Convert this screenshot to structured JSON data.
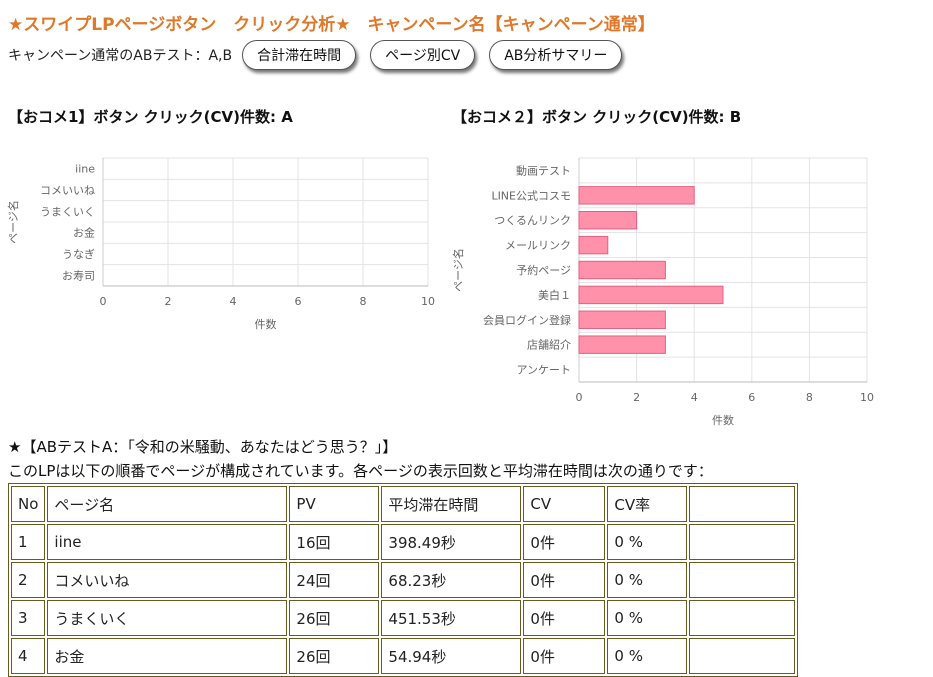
{
  "header": {
    "title": "★スワイプLPページボタン　クリック分析★　キャンペーン名【キャンペーン通常】",
    "subtitle": "キャンペーン通常のABテスト：A,B",
    "buttons": {
      "total_stay": "合計滞在時間",
      "page_cv": "ページ別CV",
      "ab_summary": "AB分析サマリー"
    }
  },
  "colors": {
    "title": "#e0782a",
    "bar_fill": "#ff91ab",
    "bar_stroke": "#e5607f",
    "table_border": "#6b5a1e"
  },
  "chart_data": [
    {
      "type": "bar",
      "orientation": "horizontal",
      "title": "【おコメ1】ボタン クリック(CV)件数: A",
      "categories": [
        "iine",
        "コメいいね",
        "うまくいく",
        "お金",
        "うなぎ",
        "お寿司"
      ],
      "values": [
        0,
        0,
        0,
        0,
        0,
        0
      ],
      "xlabel": "件数",
      "ylabel": "ページ名",
      "xlim": [
        0,
        10
      ],
      "xticks": [
        0,
        2,
        4,
        6,
        8,
        10
      ],
      "grid": true
    },
    {
      "type": "bar",
      "orientation": "horizontal",
      "title": "【おコメ２】ボタン クリック(CV)件数: B",
      "categories": [
        "動画テスト",
        "LINE公式コスモ",
        "つくるんリンク",
        "メールリンク",
        "予約ページ",
        "美白１",
        "会員ログイン登録",
        "店舗紹介",
        "アンケート"
      ],
      "values": [
        0,
        4,
        2,
        1,
        3,
        5,
        3,
        3,
        0
      ],
      "xlabel": "件数",
      "ylabel": "ページ名",
      "xlim": [
        0,
        10
      ],
      "xticks": [
        0,
        2,
        4,
        6,
        8,
        10
      ],
      "grid": true
    }
  ],
  "section": {
    "heading": "★【ABテストA：「令和の米騒動、あなたはどう思う？」】",
    "description": "このLPは以下の順番でページが構成されています。各ページの表示回数と平均滞在時間は次の通りです："
  },
  "table": {
    "headers": [
      "No",
      "ページ名",
      "PV",
      "平均滞在時間",
      "CV",
      "CV率",
      ""
    ],
    "rows": [
      [
        "1",
        "iine",
        "16回",
        "398.49秒",
        "0件",
        "0 %",
        ""
      ],
      [
        "2",
        "コメいいね",
        "24回",
        "68.23秒",
        "0件",
        "0 %",
        ""
      ],
      [
        "3",
        "うまくいく",
        "26回",
        "451.53秒",
        "0件",
        "0 %",
        ""
      ],
      [
        "4",
        "お金",
        "26回",
        "54.94秒",
        "0件",
        "0 %",
        ""
      ]
    ]
  }
}
